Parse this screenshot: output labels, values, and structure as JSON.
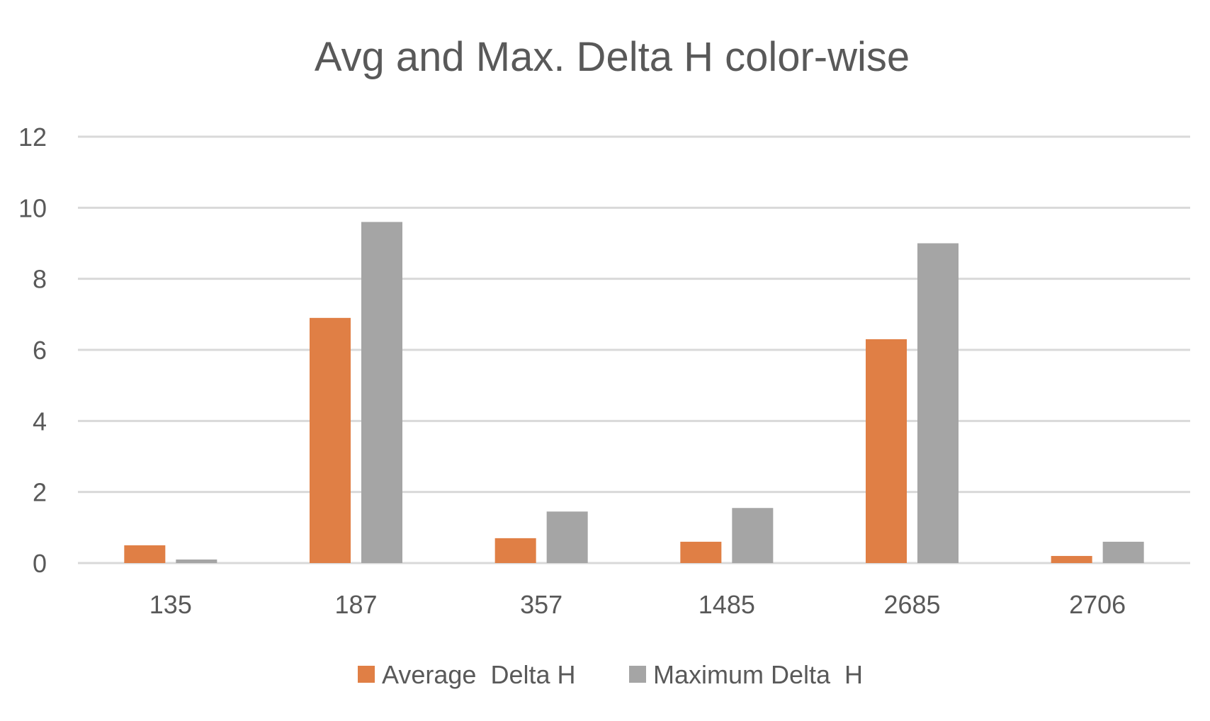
{
  "chart_data": {
    "type": "bar",
    "title": "Avg and Max. Delta H color-wise",
    "xlabel": "",
    "ylabel": "",
    "categories": [
      "135",
      "187",
      "357",
      "1485",
      "2685",
      "2706"
    ],
    "series": [
      {
        "name": "Average  Delta H",
        "color": "#E07F45",
        "values": [
          0.5,
          6.9,
          0.7,
          0.6,
          6.3,
          0.2
        ]
      },
      {
        "name": "Maximum Delta  H",
        "color": "#A5A5A5",
        "values": [
          0.1,
          9.6,
          1.45,
          1.55,
          9.0,
          0.6
        ]
      }
    ],
    "ylim": [
      0,
      12
    ],
    "yticks": [
      "0",
      "2",
      "4",
      "6",
      "8",
      "10",
      "12"
    ],
    "grid": true,
    "gridline_color": "#D9D9D9",
    "legend_position": "bottom"
  }
}
